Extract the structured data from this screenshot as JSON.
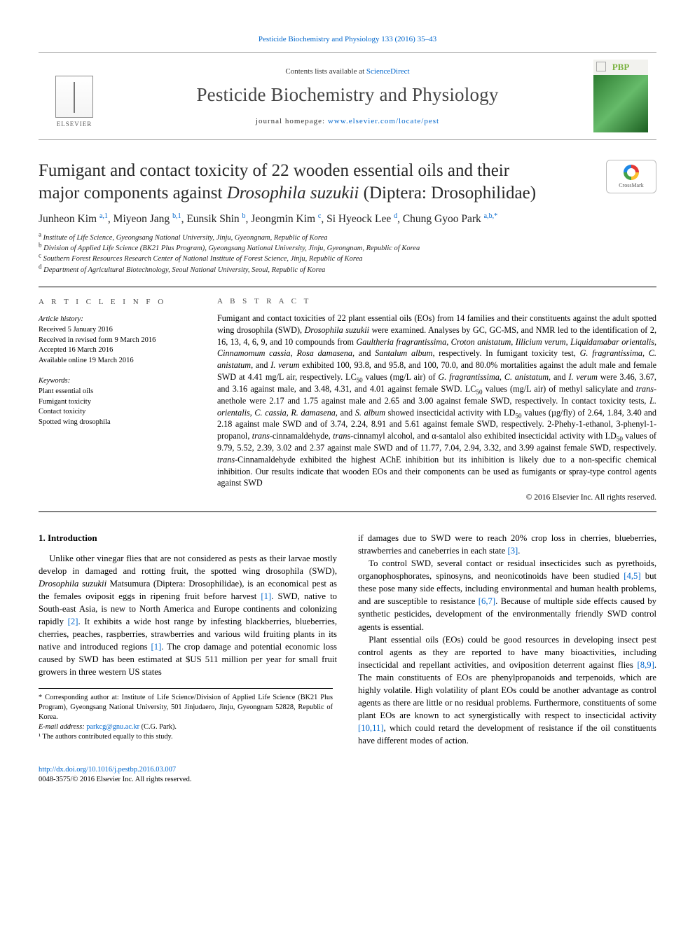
{
  "top_citation_pre": "Pesticide Biochemistry and Physiology 133 (2016) 35–43",
  "header": {
    "contents_pre": "Contents lists available at ",
    "contents_link": "ScienceDirect",
    "journal_name": "Pesticide Biochemistry and Physiology",
    "homepage_pre": "journal homepage: ",
    "homepage_link": "www.elsevier.com/locate/pest",
    "elsevier_label": "ELSEVIER",
    "cover_acronym": "PBP"
  },
  "crossmark_label": "CrossMark",
  "title_line1": "Fumigant and contact toxicity of 22 wooden essential oils and their",
  "title_line2_pre": "major components against ",
  "title_line2_ital": "Drosophila suzukii",
  "title_line2_post": " (Diptera: Drosophilidae)",
  "authors_html": "Junheon Kim <sup>a,1</sup>, Miyeon Jang <sup>b,1</sup>, Eunsik Shin <sup>b</sup>, Jeongmin Kim <sup>c</sup>, Si Hyeock Lee <sup>d</sup>, Chung Gyoo Park <sup>a,b,*</sup>",
  "affiliations": [
    {
      "sup": "a",
      "text": "Institute of Life Science, Gyeongsang National University, Jinju, Gyeongnam, Republic of Korea"
    },
    {
      "sup": "b",
      "text": "Division of Applied Life Science (BK21 Plus Program), Gyeongsang National University, Jinju, Gyeongnam, Republic of Korea"
    },
    {
      "sup": "c",
      "text": "Southern Forest Resources Research Center of National Institute of Forest Science, Jinju, Republic of Korea"
    },
    {
      "sup": "d",
      "text": "Department of Agricultural Biotechnology, Seoul National University, Seoul, Republic of Korea"
    }
  ],
  "info": {
    "section_label": "A R T I C L E   I N F O",
    "history_label": "Article history:",
    "received": "Received 5 January 2016",
    "revised": "Received in revised form 9 March 2016",
    "accepted": "Accepted 16 March 2016",
    "online": "Available online 19 March 2016",
    "keywords_label": "Keywords:",
    "keywords": [
      "Plant essential oils",
      "Fumigant toxicity",
      "Contact toxicity",
      "Spotted wing drosophila"
    ]
  },
  "abstract": {
    "section_label": "A B S T R A C T",
    "body": "Fumigant and contact toxicities of 22 plant essential oils (EOs) from 14 families and their constituents against the adult spotted wing drosophila (SWD), <em>Drosophila suzukii</em> were examined. Analyses by GC, GC-MS, and NMR led to the identification of 2, 16, 13, 4, 6, 9, and 10 compounds from <em>Gaultheria fragrantissima</em>, <em>Croton anistatum</em>, <em>Illicium verum</em>, <em>Liquidamabar orientalis</em>, <em>Cinnamomum cassia</em>, <em>Rosa damasena</em>, and <em>Santalum album</em>, respectively. In fumigant toxicity test, <em>G. fragrantissima</em>, <em>C. anistatum</em>, and <em>I. verum</em> exhibited 100, 93.8, and 95.8, and 100, 70.0, and 80.0% mortalities against the adult male and female SWD at 4.41 mg/L air, respectively. LC<sub>50</sub> values (mg/L air) of <em>G. fragrantissima</em>, <em>C. anistatum</em>, and <em>I. verum</em> were 3.46, 3.67, and 3.16 against male, and 3.48, 4.31, and 4.01 against female SWD. LC<sub>50</sub> values (mg/L air) of methyl salicylate and <em>trans</em>-anethole were 2.17 and 1.75 against male and 2.65 and 3.00 against female SWD, respectively. In contact toxicity tests, <em>L. orientalis</em>, <em>C. cassia</em>, <em>R. damasena</em>, and <em>S. album</em> showed insecticidal activity with LD<sub>50</sub> values (µg/fly) of 2.64, 1.84, 3.40 and 2.18 against male SWD and of 3.74, 2.24, 8.91 and 5.61 against female SWD, respectively. 2-Phehy-1-ethanol, 3-phenyl-1-propanol, <em>trans</em>-cinnamaldehyde, <em>trans</em>-cinnamyl alcohol, and α-santalol also exhibited insecticidal activity with LD<sub>50</sub> values of 9.79, 5.52, 2.39, 3.02 and 2.37 against male SWD and of 11.77, 7.04, 2.94, 3.32, and 3.99 against female SWD, respectively. <em>trans</em>-Cinnamaldehyde exhibited the highest AChE inhibition but its inhibition is likely due to a non-specific chemical inhibition. Our results indicate that wooden EOs and their components can be used as fumigants or spray-type control agents against SWD",
    "copyright": "© 2016 Elsevier Inc. All rights reserved."
  },
  "intro": {
    "heading": "1. Introduction",
    "p1": "Unlike other vinegar flies that are not considered as pests as their larvae mostly develop in damaged and rotting fruit, the spotted wing drosophila (SWD), <em>Drosophila suzukii</em> Matsumura (Diptera: Drosophilidae), is an economical pest as the females oviposit eggs in ripening fruit before harvest <span class='ref'>[1]</span>. SWD, native to South-east Asia, is new to North America and Europe continents and colonizing rapidly <span class='ref'>[2]</span>. It exhibits a wide host range by infesting blackberries, blueberries, cherries, peaches, raspberries, strawberries and various wild fruiting plants in its native and introduced regions <span class='ref'>[1]</span>. The crop damage and potential economic loss caused by SWD has been estimated at $US 511 million per year for small fruit growers in three western US states",
    "p2": "if damages due to SWD were to reach 20% crop loss in cherries, blueberries, strawberries and caneberries in each state <span class='ref'>[3]</span>.",
    "p3": "To control SWD, several contact or residual insecticides such as pyrethoids, organophosphorates, spinosyns, and neonicotinoids have been studied <span class='ref'>[4,5]</span> but these pose many side effects, including environmental and human health problems, and are susceptible to resistance <span class='ref'>[6,7]</span>. Because of multiple side effects caused by synthetic pesticides, development of the environmentally friendly SWD control agents is essential.",
    "p4": "Plant essential oils (EOs) could be good resources in developing insect pest control agents as they are reported to have many bioactivities, including insecticidal and repellant activities, and oviposition deterrent against flies <span class='ref'>[8,9]</span>. The main constituents of EOs are phenylpropanoids and terpenoids, which are highly volatile. High volatility of plant EOs could be another advantage as control agents as there are little or no residual problems. Furthermore, constituents of some plant EOs are known to act synergistically with respect to insecticidal activity <span class='ref'>[10,11]</span>, which could retard the development of resistance if the oil constituents have different modes of action."
  },
  "footnotes": {
    "corr": "* Corresponding author at: Institute of Life Science/Division of Applied Life Science (BK21 Plus Program), Gyeongsang National University, 501 Jinjudaero, Jinju, Gyeongnam 52828, Republic of Korea.",
    "email_label": "E-mail address: ",
    "email": "parkcg@gnu.ac.kr",
    "email_post": " (C.G. Park).",
    "contrib": "¹ The authors contributed equally to this study."
  },
  "footer": {
    "doi": "http://dx.doi.org/10.1016/j.pestbp.2016.03.007",
    "issn_line": "0048-3575/© 2016 Elsevier Inc. All rights reserved."
  }
}
